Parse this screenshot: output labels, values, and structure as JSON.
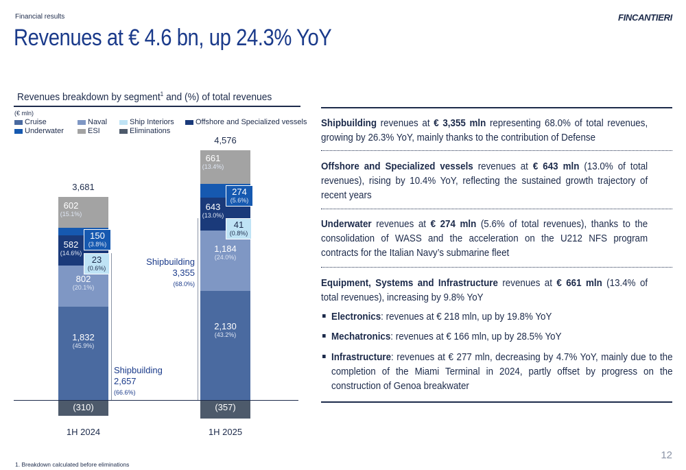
{
  "header": {
    "section": "Financial results",
    "logo": "FINCANTIERI",
    "title": "Revenues at € 4.6 bn, up 24.3% YoY"
  },
  "chart_header": {
    "title": "Revenues breakdown by segment",
    "title_sup": "1",
    "title_suffix": " and (%) of total revenues",
    "unit": "(€ mln)"
  },
  "legend": [
    {
      "name": "Cruise",
      "color": "#4a6aa0"
    },
    {
      "name": "Naval",
      "color": "#7f97c4"
    },
    {
      "name": "Ship Interiors",
      "color": "#bfe3f5"
    },
    {
      "name": "Offshore and Specialized vessels",
      "color": "#1a3a7a"
    },
    {
      "name": "Underwater",
      "color": "#1659b0"
    },
    {
      "name": "ESI",
      "color": "#a3a3a3"
    },
    {
      "name": "Eliminations",
      "color": "#4d5a6b"
    }
  ],
  "chart_data": {
    "type": "bar",
    "stacked": true,
    "categories": [
      "1H 2024",
      "1H 2025"
    ],
    "series": [
      {
        "name": "Cruise",
        "values": [
          1832,
          2130
        ],
        "pct": [
          "(45.9%)",
          "(43.2%)"
        ],
        "labels": [
          "1,832",
          "2,130"
        ]
      },
      {
        "name": "Naval",
        "values": [
          802,
          1184
        ],
        "pct": [
          "(20.1%)",
          "(24.0%)"
        ],
        "labels": [
          "802",
          "1,184"
        ]
      },
      {
        "name": "Ship Interiors",
        "values": [
          23,
          41
        ],
        "pct": [
          "(0.6%)",
          "(0.8%)"
        ],
        "labels": [
          "23",
          "41"
        ]
      },
      {
        "name": "Offshore and Specialized vessels",
        "values": [
          582,
          643
        ],
        "pct": [
          "(14.6%)",
          "(13.0%)"
        ],
        "labels": [
          "582",
          "643"
        ]
      },
      {
        "name": "Underwater",
        "values": [
          150,
          274
        ],
        "pct": [
          "(3.8%)",
          "(5.6%)"
        ],
        "labels": [
          "150",
          "274"
        ]
      },
      {
        "name": "ESI",
        "values": [
          602,
          661
        ],
        "pct": [
          "(15.1%)",
          "(13.4%)"
        ],
        "labels": [
          "602",
          "661"
        ]
      },
      {
        "name": "Eliminations",
        "values": [
          -310,
          -357
        ],
        "labels": [
          "(310)",
          "(357)"
        ]
      }
    ],
    "totals": [
      "3,681",
      "4,576"
    ],
    "shipbuilding": [
      {
        "label": "Shipbuilding",
        "value": "2,657",
        "pct": "(66.6%)"
      },
      {
        "label": "Shipbuilding",
        "value": "3,355",
        "pct": "(68.0%)"
      }
    ]
  },
  "paragraphs": [
    {
      "bold": "Shipbuilding",
      "text": " revenues at ",
      "bold2": "€ 3,355 mln",
      "text2": " representing 68.0% of total revenues, growing by 26.3% YoY, mainly thanks to the contribution of Defense"
    },
    {
      "bold": "Offshore and Specialized vessels",
      "text": " revenues at ",
      "bold2": "€ 643 mln",
      "text2": " (13.0% of total revenues), rising by 10.4% YoY, reflecting the sustained growth trajectory of recent years"
    },
    {
      "bold": "Underwater",
      "text": " revenues at ",
      "bold2": "€ 274 mln",
      "text2": " (5.6% of total revenues), thanks to the consolidation of WASS and the acceleration on the U212 NFS program contracts for the Italian Navy’s submarine fleet"
    },
    {
      "bold": "Equipment, Systems and Infrastructure",
      "text": " revenues at ",
      "bold2": "€ 661 mln",
      "text2": " (13.4% of total revenues), increasing by 9.8% YoY"
    }
  ],
  "bullets": [
    {
      "bold": "Electronics",
      "text": ": revenues at € 218 mln, up by 19.8% YoY"
    },
    {
      "bold": "Mechatronics",
      "text": ": revenues at € 166 mln, up by 28.5% YoY"
    },
    {
      "bold": "Infrastructure",
      "text": ": revenues at € 277 mln, decreasing by 4.7% YoY, mainly due to the completion of the Miami Terminal in 2024, partly offset by progress on the construction of Genoa breakwater"
    }
  ],
  "footnote": "1.  Breakdown calculated before eliminations",
  "page_number": "12"
}
